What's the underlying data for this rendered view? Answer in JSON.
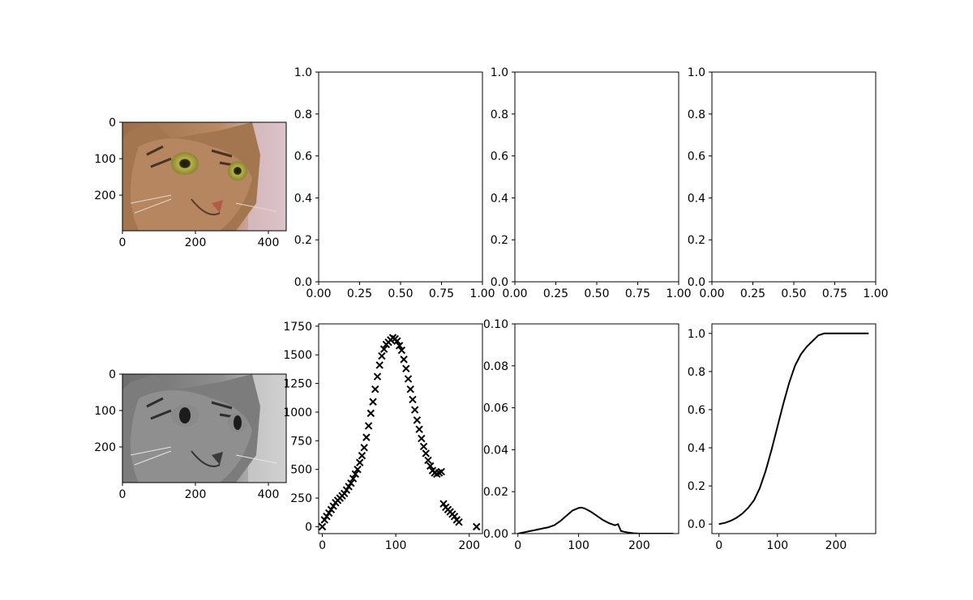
{
  "figure": {
    "background": "#ffffff",
    "images": [
      {
        "name": "cat-photo-color",
        "kind": "color",
        "xticks": [
          "0",
          "200",
          "400"
        ],
        "yticks": [
          "0",
          "100",
          "200"
        ]
      },
      {
        "name": "cat-photo-grayscale",
        "kind": "grayscale",
        "xticks": [
          "0",
          "200",
          "400"
        ],
        "yticks": [
          "0",
          "100",
          "200"
        ]
      }
    ]
  },
  "chart_data": [
    {
      "type": "empty",
      "xlim": [
        0,
        1
      ],
      "ylim": [
        0,
        1
      ],
      "xticks": [
        "0.00",
        "0.25",
        "0.50",
        "0.75",
        "1.00"
      ],
      "yticks": [
        "0.0",
        "0.2",
        "0.4",
        "0.6",
        "0.8",
        "1.0"
      ]
    },
    {
      "type": "empty",
      "xlim": [
        0,
        1
      ],
      "ylim": [
        0,
        1
      ],
      "xticks": [
        "0.00",
        "0.25",
        "0.50",
        "0.75",
        "1.00"
      ],
      "yticks": [
        "0.0",
        "0.2",
        "0.4",
        "0.6",
        "0.8",
        "1.0"
      ]
    },
    {
      "type": "empty",
      "xlim": [
        0,
        1
      ],
      "ylim": [
        0,
        1
      ],
      "xticks": [
        "0.00",
        "0.25",
        "0.50",
        "0.75",
        "1.00"
      ],
      "yticks": [
        "0.0",
        "0.2",
        "0.4",
        "0.6",
        "0.8",
        "1.0"
      ]
    },
    {
      "type": "scatter",
      "marker": "x",
      "color": "#000000",
      "xlim": [
        -5,
        218
      ],
      "ylim": [
        -60,
        1770
      ],
      "xticks": [
        "0",
        "100",
        "200"
      ],
      "yticks": [
        "0",
        "250",
        "500",
        "750",
        "1000",
        "1250",
        "1500",
        "1750"
      ],
      "x": [
        0,
        3,
        6,
        9,
        12,
        15,
        18,
        21,
        24,
        27,
        30,
        33,
        36,
        39,
        42,
        45,
        48,
        51,
        54,
        57,
        60,
        63,
        66,
        69,
        72,
        75,
        78,
        81,
        84,
        87,
        90,
        93,
        96,
        99,
        102,
        105,
        108,
        111,
        114,
        117,
        120,
        123,
        126,
        129,
        132,
        135,
        138,
        141,
        144,
        147,
        150,
        153,
        156,
        159,
        162,
        165,
        168,
        171,
        174,
        177,
        180,
        183,
        186,
        210
      ],
      "y": [
        0,
        60,
        90,
        120,
        150,
        180,
        210,
        230,
        250,
        270,
        290,
        320,
        350,
        380,
        420,
        460,
        500,
        560,
        620,
        690,
        780,
        880,
        990,
        1090,
        1200,
        1310,
        1410,
        1490,
        1550,
        1590,
        1610,
        1630,
        1650,
        1640,
        1620,
        1580,
        1540,
        1460,
        1380,
        1290,
        1200,
        1110,
        1020,
        930,
        850,
        770,
        700,
        640,
        580,
        530,
        490,
        470,
        460,
        470,
        480,
        200,
        170,
        150,
        130,
        110,
        90,
        60,
        40,
        0
      ]
    },
    {
      "type": "line",
      "color": "#000000",
      "xlim": [
        -5,
        265
      ],
      "ylim": [
        0,
        0.1
      ],
      "xticks": [
        "0",
        "100",
        "200"
      ],
      "yticks": [
        "0.00",
        "0.02",
        "0.04",
        "0.06",
        "0.08",
        "0.10"
      ],
      "x": [
        0,
        10,
        20,
        30,
        40,
        50,
        60,
        70,
        80,
        90,
        100,
        105,
        110,
        120,
        130,
        140,
        150,
        160,
        165,
        170,
        175,
        180,
        185,
        190,
        200,
        220,
        256
      ],
      "y": [
        0,
        0.0006,
        0.0012,
        0.0018,
        0.0024,
        0.003,
        0.004,
        0.006,
        0.0085,
        0.011,
        0.0122,
        0.0124,
        0.012,
        0.0105,
        0.0085,
        0.0065,
        0.005,
        0.004,
        0.0045,
        0.0012,
        0.0009,
        0.0006,
        0.0004,
        0.0002,
        0,
        0,
        0
      ]
    },
    {
      "type": "line",
      "color": "#000000",
      "xlim": [
        -12,
        268
      ],
      "ylim": [
        -0.05,
        1.05
      ],
      "xticks": [
        "0",
        "100",
        "200"
      ],
      "yticks": [
        "0.0",
        "0.2",
        "0.4",
        "0.6",
        "0.8",
        "1.0"
      ],
      "x": [
        0,
        10,
        20,
        30,
        40,
        50,
        60,
        70,
        80,
        90,
        100,
        110,
        120,
        130,
        140,
        150,
        160,
        170,
        180,
        190,
        200,
        220,
        256
      ],
      "y": [
        0,
        0.006,
        0.017,
        0.033,
        0.055,
        0.085,
        0.125,
        0.19,
        0.28,
        0.39,
        0.51,
        0.63,
        0.74,
        0.83,
        0.89,
        0.93,
        0.96,
        0.99,
        1.0,
        1.0,
        1.0,
        1.0,
        1.0
      ]
    }
  ]
}
